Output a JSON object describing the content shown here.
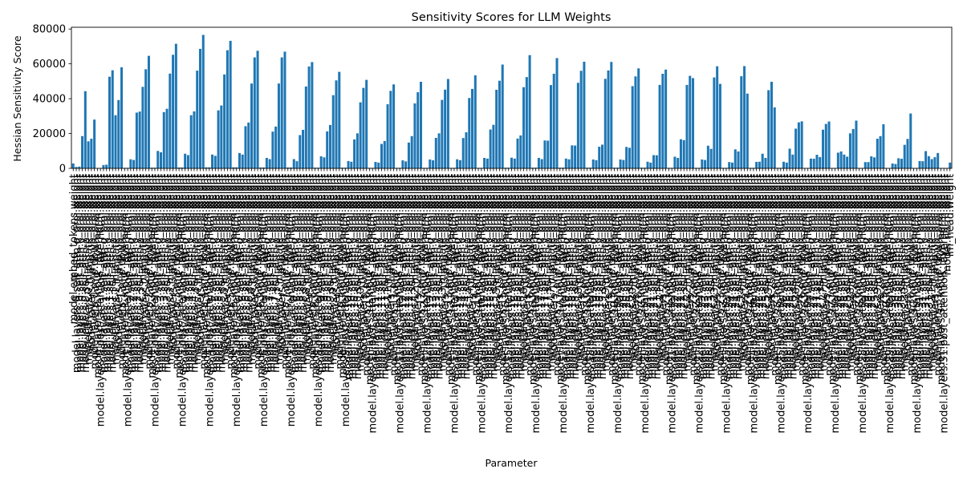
{
  "chart_data": {
    "type": "bar",
    "title": "Sensitivity Scores for LLM Weights",
    "xlabel": "Parameter",
    "ylabel": "Hessian Sensitivity Score",
    "ylim": [
      0,
      81000
    ],
    "yticks": [
      0,
      20000,
      40000,
      60000,
      80000
    ],
    "ytick_labels": [
      "0",
      "20000",
      "40000",
      "60000",
      "80000"
    ],
    "grid": false,
    "bar_color": "#1f77b4",
    "categories": [
      "model.embed_tokens.weight",
      "model.layers.0.self_attn.q_proj.weight",
      "model.layers.0.self_attn.k_proj.weight",
      "model.layers.0.self_attn.v_proj.weight",
      "model.layers.0.self_attn.o_proj.weight",
      "model.layers.0.mlp.gate_proj.weight",
      "model.layers.0.mlp.up_proj.weight",
      "model.layers.0.mlp.down_proj.weight",
      "model.layers.0.input_layernorm.weight",
      "model.layers.0.post_attention_layernorm.weight",
      "model.layers.1.self_attn.q_proj.weight",
      "model.layers.1.self_attn.k_proj.weight",
      "model.layers.1.self_attn.v_proj.weight",
      "model.layers.1.self_attn.o_proj.weight",
      "model.layers.1.mlp.gate_proj.weight",
      "model.layers.1.mlp.up_proj.weight",
      "model.layers.1.mlp.down_proj.weight",
      "model.layers.1.input_layernorm.weight",
      "model.layers.1.post_attention_layernorm.weight",
      "model.layers.2.self_attn.q_proj.weight",
      "model.layers.2.self_attn.k_proj.weight",
      "model.layers.2.self_attn.v_proj.weight",
      "model.layers.2.self_attn.o_proj.weight",
      "model.layers.2.mlp.gate_proj.weight",
      "model.layers.2.mlp.up_proj.weight",
      "model.layers.2.mlp.down_proj.weight",
      "model.layers.2.input_layernorm.weight",
      "model.layers.2.post_attention_layernorm.weight",
      "model.layers.3.self_attn.q_proj.weight",
      "model.layers.3.self_attn.k_proj.weight",
      "model.layers.3.self_attn.v_proj.weight",
      "model.layers.3.self_attn.o_proj.weight",
      "model.layers.3.mlp.gate_proj.weight",
      "model.layers.3.mlp.up_proj.weight",
      "model.layers.3.mlp.down_proj.weight",
      "model.layers.3.input_layernorm.weight",
      "model.layers.3.post_attention_layernorm.weight",
      "model.layers.4.self_attn.q_proj.weight",
      "model.layers.4.self_attn.k_proj.weight",
      "model.layers.4.self_attn.v_proj.weight",
      "model.layers.4.self_attn.o_proj.weight",
      "model.layers.4.mlp.gate_proj.weight",
      "model.layers.4.mlp.up_proj.weight",
      "model.layers.4.mlp.down_proj.weight",
      "model.layers.4.input_layernorm.weight",
      "model.layers.4.post_attention_layernorm.weight",
      "model.layers.5.self_attn.q_proj.weight",
      "model.layers.5.self_attn.k_proj.weight",
      "model.layers.5.self_attn.v_proj.weight",
      "model.layers.5.self_attn.o_proj.weight",
      "model.layers.5.mlp.gate_proj.weight",
      "model.layers.5.mlp.up_proj.weight",
      "model.layers.5.mlp.down_proj.weight",
      "model.layers.5.input_layernorm.weight",
      "model.layers.5.post_attention_layernorm.weight",
      "model.layers.6.self_attn.q_proj.weight",
      "model.layers.6.self_attn.k_proj.weight",
      "model.layers.6.self_attn.v_proj.weight",
      "model.layers.6.self_attn.o_proj.weight",
      "model.layers.6.mlp.gate_proj.weight",
      "model.layers.6.mlp.up_proj.weight",
      "model.layers.6.mlp.down_proj.weight",
      "model.layers.6.input_layernorm.weight",
      "model.layers.6.post_attention_layernorm.weight",
      "model.layers.7.self_attn.q_proj.weight",
      "model.layers.7.self_attn.k_proj.weight",
      "model.layers.7.self_attn.v_proj.weight",
      "model.layers.7.self_attn.o_proj.weight",
      "model.layers.7.mlp.gate_proj.weight",
      "model.layers.7.mlp.up_proj.weight",
      "model.layers.7.mlp.down_proj.weight",
      "model.layers.7.input_layernorm.weight",
      "model.layers.7.post_attention_layernorm.weight",
      "model.layers.8.self_attn.q_proj.weight",
      "model.layers.8.self_attn.k_proj.weight",
      "model.layers.8.self_attn.v_proj.weight",
      "model.layers.8.self_attn.o_proj.weight",
      "model.layers.8.mlp.gate_proj.weight",
      "model.layers.8.mlp.up_proj.weight",
      "model.layers.8.mlp.down_proj.weight",
      "model.layers.8.input_layernorm.weight",
      "model.layers.8.post_attention_layernorm.weight",
      "model.layers.9.self_attn.q_proj.weight",
      "model.layers.9.self_attn.k_proj.weight",
      "model.layers.9.self_attn.v_proj.weight",
      "model.layers.9.self_attn.o_proj.weight",
      "model.layers.9.mlp.gate_proj.weight",
      "model.layers.9.mlp.up_proj.weight",
      "model.layers.9.mlp.down_proj.weight",
      "model.layers.9.input_layernorm.weight",
      "model.layers.9.post_attention_layernorm.weight",
      "model.layers.10.self_attn.q_proj.weight",
      "model.layers.10.self_attn.k_proj.weight",
      "model.layers.10.self_attn.v_proj.weight",
      "model.layers.10.self_attn.o_proj.weight",
      "model.layers.10.mlp.gate_proj.weight",
      "model.layers.10.mlp.up_proj.weight",
      "model.layers.10.mlp.down_proj.weight",
      "model.layers.10.input_layernorm.weight",
      "model.layers.10.post_attention_layernorm.weight",
      "model.layers.11.self_attn.q_proj.weight",
      "model.layers.11.self_attn.k_proj.weight",
      "model.layers.11.self_attn.v_proj.weight",
      "model.layers.11.self_attn.o_proj.weight",
      "model.layers.11.mlp.gate_proj.weight",
      "model.layers.11.mlp.up_proj.weight",
      "model.layers.11.mlp.down_proj.weight",
      "model.layers.11.input_layernorm.weight",
      "model.layers.11.post_attention_layernorm.weight",
      "model.layers.12.self_attn.q_proj.weight",
      "model.layers.12.self_attn.k_proj.weight",
      "model.layers.12.self_attn.v_proj.weight",
      "model.layers.12.self_attn.o_proj.weight",
      "model.layers.12.mlp.gate_proj.weight",
      "model.layers.12.mlp.up_proj.weight",
      "model.layers.12.mlp.down_proj.weight",
      "model.layers.12.input_layernorm.weight",
      "model.layers.12.post_attention_layernorm.weight",
      "model.layers.13.self_attn.q_proj.weight",
      "model.layers.13.self_attn.k_proj.weight",
      "model.layers.13.self_attn.v_proj.weight",
      "model.layers.13.self_attn.o_proj.weight",
      "model.layers.13.mlp.gate_proj.weight",
      "model.layers.13.mlp.up_proj.weight",
      "model.layers.13.mlp.down_proj.weight",
      "model.layers.13.input_layernorm.weight",
      "model.layers.13.post_attention_layernorm.weight",
      "model.layers.14.self_attn.q_proj.weight",
      "model.layers.14.self_attn.k_proj.weight",
      "model.layers.14.self_attn.v_proj.weight",
      "model.layers.14.self_attn.o_proj.weight",
      "model.layers.14.mlp.gate_proj.weight",
      "model.layers.14.mlp.up_proj.weight",
      "model.layers.14.mlp.down_proj.weight",
      "model.layers.14.input_layernorm.weight",
      "model.layers.14.post_attention_layernorm.weight",
      "model.layers.15.self_attn.q_proj.weight",
      "model.layers.15.self_attn.k_proj.weight",
      "model.layers.15.self_attn.v_proj.weight",
      "model.layers.15.self_attn.o_proj.weight",
      "model.layers.15.mlp.gate_proj.weight",
      "model.layers.15.mlp.up_proj.weight",
      "model.layers.15.mlp.down_proj.weight",
      "model.layers.15.input_layernorm.weight",
      "model.layers.15.post_attention_layernorm.weight",
      "model.layers.16.self_attn.q_proj.weight",
      "model.layers.16.self_attn.k_proj.weight",
      "model.layers.16.self_attn.v_proj.weight",
      "model.layers.16.self_attn.o_proj.weight",
      "model.layers.16.mlp.gate_proj.weight",
      "model.layers.16.mlp.up_proj.weight",
      "model.layers.16.mlp.down_proj.weight",
      "model.layers.16.input_layernorm.weight",
      "model.layers.16.post_attention_layernorm.weight",
      "model.layers.17.self_attn.q_proj.weight",
      "model.layers.17.self_attn.k_proj.weight",
      "model.layers.17.self_attn.v_proj.weight",
      "model.layers.17.self_attn.o_proj.weight",
      "model.layers.17.mlp.gate_proj.weight",
      "model.layers.17.mlp.up_proj.weight",
      "model.layers.17.mlp.down_proj.weight",
      "model.layers.17.input_layernorm.weight",
      "model.layers.17.post_attention_layernorm.weight",
      "model.layers.18.self_attn.q_proj.weight",
      "model.layers.18.self_attn.k_proj.weight",
      "model.layers.18.self_attn.v_proj.weight",
      "model.layers.18.self_attn.o_proj.weight",
      "model.layers.18.mlp.gate_proj.weight",
      "model.layers.18.mlp.up_proj.weight",
      "model.layers.18.mlp.down_proj.weight",
      "model.layers.18.input_layernorm.weight",
      "model.layers.18.post_attention_layernorm.weight",
      "model.layers.19.self_attn.q_proj.weight",
      "model.layers.19.self_attn.k_proj.weight",
      "model.layers.19.self_attn.v_proj.weight",
      "model.layers.19.self_attn.o_proj.weight",
      "model.layers.19.mlp.gate_proj.weight",
      "model.layers.19.mlp.up_proj.weight",
      "model.layers.19.mlp.down_proj.weight",
      "model.layers.19.input_layernorm.weight",
      "model.layers.19.post_attention_layernorm.weight",
      "model.layers.20.self_attn.q_proj.weight",
      "model.layers.20.self_attn.k_proj.weight",
      "model.layers.20.self_attn.v_proj.weight",
      "model.layers.20.self_attn.o_proj.weight",
      "model.layers.20.mlp.gate_proj.weight",
      "model.layers.20.mlp.up_proj.weight",
      "model.layers.20.mlp.down_proj.weight",
      "model.layers.20.input_layernorm.weight",
      "model.layers.20.post_attention_layernorm.weight",
      "model.layers.21.self_attn.q_proj.weight",
      "model.layers.21.self_attn.k_proj.weight",
      "model.layers.21.self_attn.v_proj.weight",
      "model.layers.21.self_attn.o_proj.weight",
      "model.layers.21.mlp.gate_proj.weight",
      "model.layers.21.mlp.up_proj.weight",
      "model.layers.21.mlp.down_proj.weight",
      "model.layers.21.input_layernorm.weight",
      "model.layers.21.post_attention_layernorm.weight",
      "model.layers.22.self_attn.q_proj.weight",
      "model.layers.22.self_attn.k_proj.weight",
      "model.layers.22.self_attn.v_proj.weight",
      "model.layers.22.self_attn.o_proj.weight",
      "model.layers.22.mlp.gate_proj.weight",
      "model.layers.22.mlp.up_proj.weight",
      "model.layers.22.mlp.down_proj.weight",
      "model.layers.22.input_layernorm.weight",
      "model.layers.22.post_attention_layernorm.weight",
      "model.layers.23.self_attn.q_proj.weight",
      "model.layers.23.self_attn.k_proj.weight",
      "model.layers.23.self_attn.v_proj.weight",
      "model.layers.23.self_attn.o_proj.weight",
      "model.layers.23.mlp.gate_proj.weight",
      "model.layers.23.mlp.up_proj.weight",
      "model.layers.23.mlp.down_proj.weight",
      "model.layers.23.input_layernorm.weight",
      "model.layers.23.post_attention_layernorm.weight",
      "model.layers.24.self_attn.q_proj.weight",
      "model.layers.24.self_attn.k_proj.weight",
      "model.layers.24.self_attn.v_proj.weight",
      "model.layers.24.self_attn.o_proj.weight",
      "model.layers.24.mlp.gate_proj.weight",
      "model.layers.24.mlp.up_proj.weight",
      "model.layers.24.mlp.down_proj.weight",
      "model.layers.24.input_layernorm.weight",
      "model.layers.24.post_attention_layernorm.weight",
      "model.layers.25.self_attn.q_proj.weight",
      "model.layers.25.self_attn.k_proj.weight",
      "model.layers.25.self_attn.v_proj.weight",
      "model.layers.25.self_attn.o_proj.weight",
      "model.layers.25.mlp.gate_proj.weight",
      "model.layers.25.mlp.up_proj.weight",
      "model.layers.25.mlp.down_proj.weight",
      "model.layers.25.input_layernorm.weight",
      "model.layers.25.post_attention_layernorm.weight",
      "model.layers.26.self_attn.q_proj.weight",
      "model.layers.26.self_attn.k_proj.weight",
      "model.layers.26.self_attn.v_proj.weight",
      "model.layers.26.self_attn.o_proj.weight",
      "model.layers.26.mlp.gate_proj.weight",
      "model.layers.26.mlp.up_proj.weight",
      "model.layers.26.mlp.down_proj.weight",
      "model.layers.26.input_layernorm.weight",
      "model.layers.26.post_attention_layernorm.weight",
      "model.layers.27.self_attn.q_proj.weight",
      "model.layers.27.self_attn.k_proj.weight",
      "model.layers.27.self_attn.v_proj.weight",
      "model.layers.27.self_attn.o_proj.weight",
      "model.layers.27.mlp.gate_proj.weight",
      "model.layers.27.mlp.up_proj.weight",
      "model.layers.27.mlp.down_proj.weight",
      "model.layers.27.input_layernorm.weight",
      "model.layers.27.post_attention_layernorm.weight",
      "model.layers.28.self_attn.q_proj.weight",
      "model.layers.28.self_attn.k_proj.weight",
      "model.layers.28.self_attn.v_proj.weight",
      "model.layers.28.self_attn.o_proj.weight",
      "model.layers.28.mlp.gate_proj.weight",
      "model.layers.28.mlp.up_proj.weight",
      "model.layers.28.mlp.down_proj.weight",
      "model.layers.28.input_layernorm.weight",
      "model.layers.28.post_attention_layernorm.weight",
      "model.layers.29.self_attn.q_proj.weight",
      "model.layers.29.self_attn.k_proj.weight",
      "model.layers.29.self_attn.v_proj.weight",
      "model.layers.29.self_attn.o_proj.weight",
      "model.layers.29.mlp.gate_proj.weight",
      "model.layers.29.mlp.up_proj.weight",
      "model.layers.29.mlp.down_proj.weight",
      "model.layers.29.input_layernorm.weight",
      "model.layers.29.post_attention_layernorm.weight",
      "model.layers.30.self_attn.q_proj.weight",
      "model.layers.30.self_attn.k_proj.weight",
      "model.layers.30.self_attn.v_proj.weight",
      "model.layers.30.self_attn.o_proj.weight",
      "model.layers.30.mlp.gate_proj.weight",
      "model.layers.30.mlp.up_proj.weight",
      "model.layers.30.mlp.down_proj.weight",
      "model.layers.30.input_layernorm.weight",
      "model.layers.30.post_attention_layernorm.weight",
      "model.layers.31.self_attn.q_proj.weight",
      "model.layers.31.self_attn.k_proj.weight",
      "model.layers.31.self_attn.v_proj.weight",
      "model.layers.31.self_attn.o_proj.weight",
      "model.layers.31.mlp.gate_proj.weight",
      "model.layers.31.mlp.up_proj.weight",
      "model.layers.31.mlp.down_proj.weight",
      "model.layers.31.input_layernorm.weight",
      "model.layers.31.post_attention_layernorm.weight",
      "model.norm.weight",
      "lm_head.weight"
    ],
    "values": [
      2800,
      800,
      1000,
      18500,
      44300,
      15500,
      17000,
      28000,
      200,
      200,
      1900,
      2100,
      52600,
      56300,
      30500,
      39200,
      58000,
      300,
      300,
      5200,
      4800,
      32000,
      32600,
      46800,
      56900,
      64600,
      400,
      400,
      10000,
      9200,
      32300,
      34200,
      54400,
      65200,
      71500,
      500,
      500,
      8400,
      7600,
      30500,
      32700,
      56100,
      68600,
      76600,
      600,
      600,
      7900,
      7200,
      33300,
      36100,
      53900,
      67800,
      73200,
      600,
      600,
      8800,
      7900,
      24200,
      26300,
      48700,
      63700,
      67500,
      500,
      500,
      6000,
      5300,
      21100,
      24000,
      48700,
      63700,
      67000,
      500,
      500,
      5300,
      4100,
      19100,
      22100,
      47000,
      58500,
      61000,
      400,
      400,
      6900,
      6300,
      21200,
      24900,
      42000,
      50500,
      55400,
      400,
      400,
      4200,
      3800,
      16600,
      20100,
      37900,
      46200,
      50800,
      300,
      300,
      3700,
      3300,
      14000,
      15700,
      36800,
      44500,
      48200,
      300,
      300,
      4600,
      4000,
      14800,
      18500,
      37300,
      43700,
      49700,
      300,
      300,
      5100,
      4600,
      17500,
      20100,
      39300,
      45200,
      51300,
      300,
      300,
      5200,
      4700,
      17400,
      20700,
      40400,
      45600,
      53400,
      300,
      300,
      6000,
      5600,
      22300,
      25000,
      45100,
      50300,
      59600,
      400,
      400,
      6100,
      5600,
      17100,
      18900,
      46600,
      52400,
      65000,
      400,
      400,
      6000,
      5300,
      16000,
      15900,
      47800,
      54300,
      63300,
      400,
      400,
      5600,
      5200,
      13200,
      13100,
      49100,
      56000,
      61200,
      400,
      400,
      5100,
      4700,
      12400,
      13600,
      51400,
      56200,
      61100,
      400,
      400,
      5100,
      4800,
      12300,
      11800,
      47200,
      52800,
      57400,
      400,
      400,
      3800,
      3300,
      7600,
      7500,
      47900,
      54300,
      56700,
      300,
      300,
      6700,
      6000,
      16700,
      16200,
      47900,
      53100,
      51800,
      300,
      300,
      5100,
      4800,
      13000,
      11200,
      52200,
      58600,
      48500,
      300,
      300,
      3600,
      3300,
      10900,
      9700,
      52900,
      58700,
      42900,
      300,
      300,
      3700,
      3800,
      8400,
      6000,
      44900,
      49700,
      35000,
      300,
      300,
      3800,
      3300,
      11300,
      7900,
      22800,
      26400,
      27000,
      200,
      200,
      5600,
      5500,
      7800,
      6500,
      22200,
      25500,
      26900,
      200,
      200,
      9000,
      9700,
      7900,
      6700,
      20100,
      22600,
      27400,
      200,
      200,
      3600,
      3600,
      6900,
      6300,
      17000,
      18500,
      25300,
      200,
      200,
      2800,
      2500,
      5800,
      5500,
      13500,
      16900,
      31500,
      200,
      200,
      4200,
      4100,
      9900,
      7000,
      5300,
      6400,
      8800,
      200,
      200,
      200,
      3300
    ]
  }
}
